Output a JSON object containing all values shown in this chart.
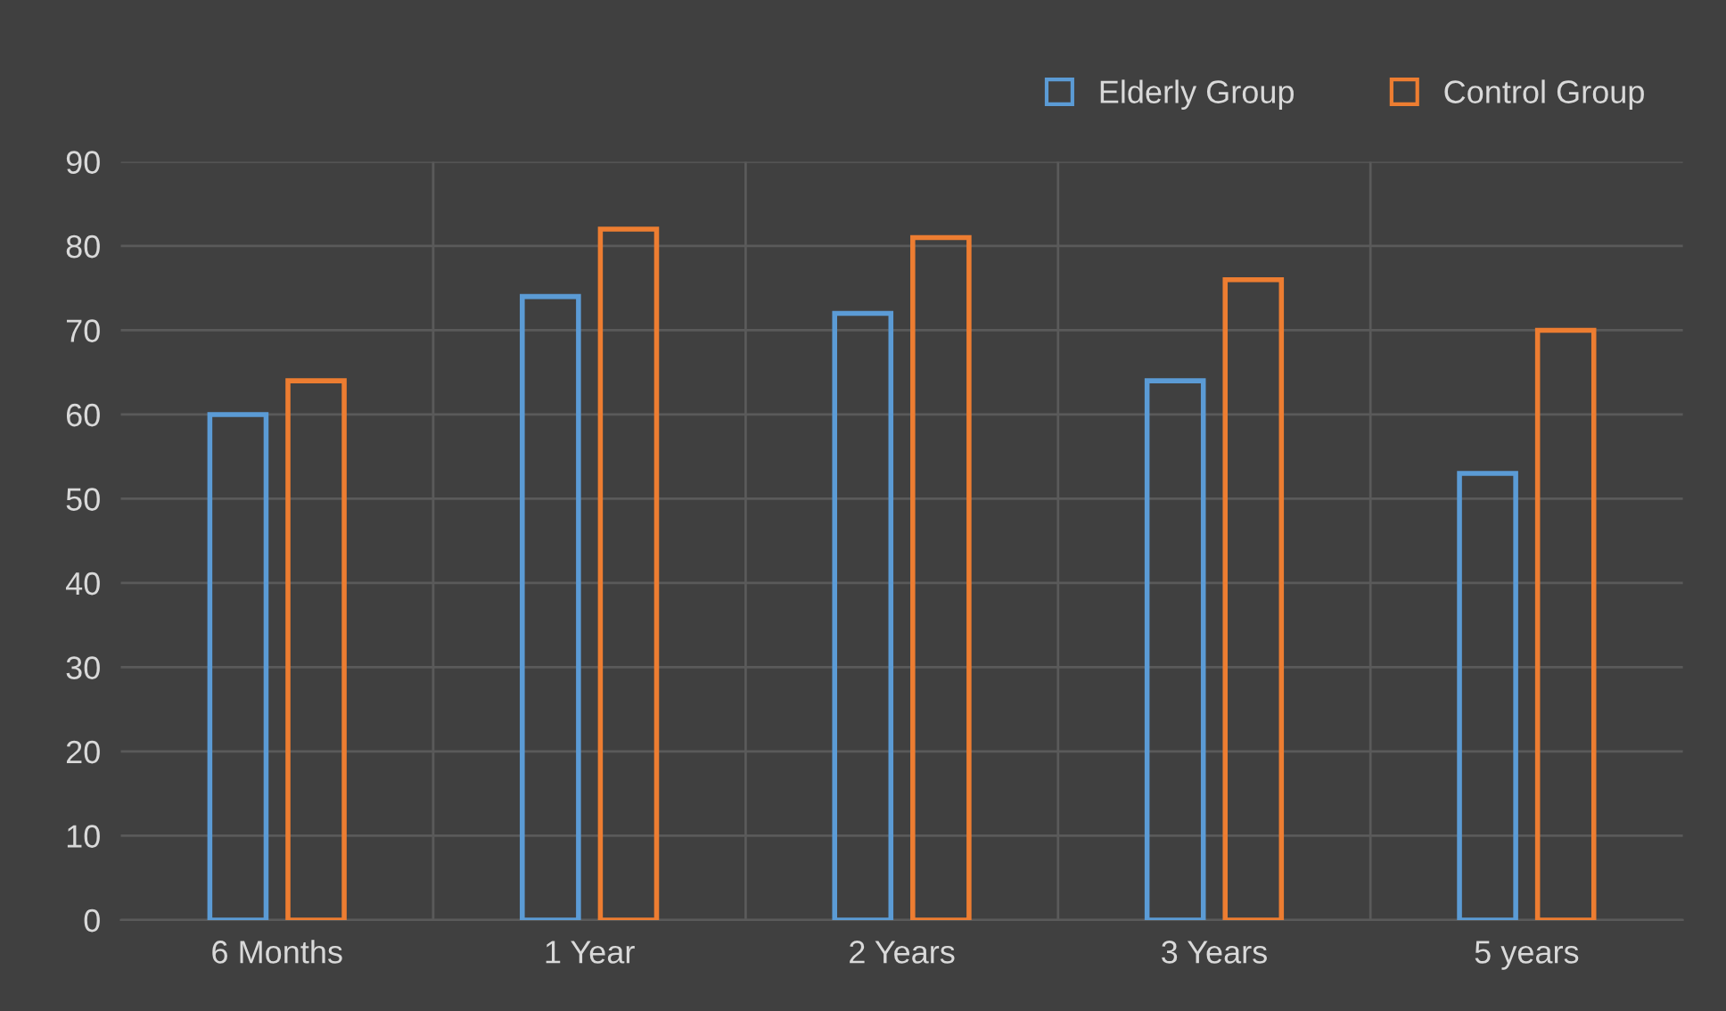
{
  "chart_data": {
    "type": "bar",
    "categories": [
      "6 Months",
      "1 Year",
      "2 Years",
      "3 Years",
      "5 years"
    ],
    "series": [
      {
        "name": "Elderly Group",
        "color": "#5b9bd5",
        "values": [
          60,
          74,
          72,
          64,
          53
        ]
      },
      {
        "name": "Control Group",
        "color": "#ed7d31",
        "values": [
          64,
          82,
          81,
          76,
          70
        ]
      }
    ],
    "ylim": [
      0,
      90
    ],
    "yticks": [
      0,
      10,
      20,
      30,
      40,
      50,
      60,
      70,
      80,
      90
    ],
    "grid": true,
    "legend": "top right"
  }
}
